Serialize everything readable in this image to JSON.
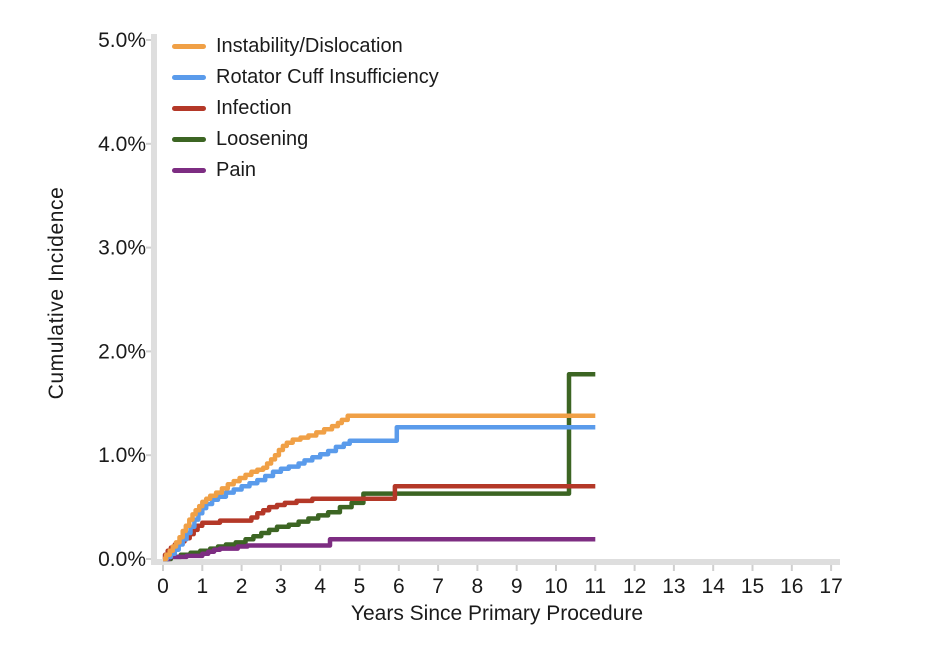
{
  "figure": {
    "background": "#FFFFFF",
    "axis_bar_color": "#DEDEDE",
    "tick_mark_color": "#CFCFCF",
    "text_color": "#1A1A1A"
  },
  "chart_data": {
    "type": "line",
    "step": true,
    "title": "",
    "xlabel": "Years Since Primary Procedure",
    "ylabel": "Cumulative Incidence",
    "value_unit": "%",
    "xlim": [
      0,
      17
    ],
    "ylim": [
      0,
      5
    ],
    "grid": false,
    "legend_position": "top-left-inside",
    "x_ticks": [
      0,
      1,
      2,
      3,
      4,
      5,
      6,
      7,
      8,
      9,
      10,
      11,
      12,
      13,
      14,
      15,
      16,
      17
    ],
    "y_ticks": [
      {
        "v": 0,
        "label": "0.0%"
      },
      {
        "v": 1,
        "label": "1.0%"
      },
      {
        "v": 2,
        "label": "2.0%"
      },
      {
        "v": 3,
        "label": "3.0%"
      },
      {
        "v": 4,
        "label": "4.0%"
      },
      {
        "v": 5,
        "label": "5.0%"
      }
    ],
    "series": [
      {
        "name": "Instability/Dislocation",
        "color": "#F0A046",
        "final_value_pct": 1.38,
        "points": [
          [
            0,
            0
          ],
          [
            0.08,
            0.04
          ],
          [
            0.17,
            0.08
          ],
          [
            0.25,
            0.12
          ],
          [
            0.33,
            0.16
          ],
          [
            0.42,
            0.21
          ],
          [
            0.5,
            0.27
          ],
          [
            0.58,
            0.32
          ],
          [
            0.67,
            0.38
          ],
          [
            0.75,
            0.43
          ],
          [
            0.83,
            0.47
          ],
          [
            0.92,
            0.51
          ],
          [
            1.0,
            0.55
          ],
          [
            1.1,
            0.58
          ],
          [
            1.2,
            0.61
          ],
          [
            1.35,
            0.64
          ],
          [
            1.5,
            0.68
          ],
          [
            1.65,
            0.72
          ],
          [
            1.8,
            0.75
          ],
          [
            1.95,
            0.78
          ],
          [
            2.1,
            0.81
          ],
          [
            2.25,
            0.84
          ],
          [
            2.4,
            0.86
          ],
          [
            2.55,
            0.88
          ],
          [
            2.65,
            0.92
          ],
          [
            2.75,
            0.96
          ],
          [
            2.85,
            1.0
          ],
          [
            2.95,
            1.05
          ],
          [
            3.05,
            1.09
          ],
          [
            3.15,
            1.12
          ],
          [
            3.3,
            1.15
          ],
          [
            3.5,
            1.17
          ],
          [
            3.7,
            1.19
          ],
          [
            3.9,
            1.22
          ],
          [
            4.1,
            1.25
          ],
          [
            4.3,
            1.28
          ],
          [
            4.45,
            1.31
          ],
          [
            4.55,
            1.34
          ],
          [
            4.7,
            1.38
          ],
          [
            11,
            1.38
          ]
        ]
      },
      {
        "name": "Rotator Cuff Insufficiency",
        "color": "#5A9BEB",
        "final_value_pct": 1.27,
        "points": [
          [
            0,
            0
          ],
          [
            0.1,
            0.02
          ],
          [
            0.2,
            0.05
          ],
          [
            0.3,
            0.09
          ],
          [
            0.4,
            0.14
          ],
          [
            0.5,
            0.19
          ],
          [
            0.6,
            0.25
          ],
          [
            0.7,
            0.31
          ],
          [
            0.8,
            0.38
          ],
          [
            0.9,
            0.44
          ],
          [
            1.0,
            0.49
          ],
          [
            1.1,
            0.53
          ],
          [
            1.25,
            0.57
          ],
          [
            1.4,
            0.6
          ],
          [
            1.6,
            0.64
          ],
          [
            1.8,
            0.67
          ],
          [
            2.0,
            0.7
          ],
          [
            2.2,
            0.73
          ],
          [
            2.4,
            0.76
          ],
          [
            2.6,
            0.8
          ],
          [
            2.8,
            0.84
          ],
          [
            3.0,
            0.87
          ],
          [
            3.2,
            0.89
          ],
          [
            3.45,
            0.92
          ],
          [
            3.6,
            0.95
          ],
          [
            3.8,
            0.98
          ],
          [
            4.0,
            1.01
          ],
          [
            4.2,
            1.04
          ],
          [
            4.4,
            1.08
          ],
          [
            4.6,
            1.11
          ],
          [
            4.75,
            1.14
          ],
          [
            5.95,
            1.27
          ],
          [
            11,
            1.27
          ]
        ]
      },
      {
        "name": "Infection",
        "color": "#B43828",
        "final_value_pct": 0.7,
        "points": [
          [
            0,
            0
          ],
          [
            0.05,
            0.04
          ],
          [
            0.12,
            0.08
          ],
          [
            0.2,
            0.11
          ],
          [
            0.3,
            0.14
          ],
          [
            0.42,
            0.17
          ],
          [
            0.55,
            0.2
          ],
          [
            0.68,
            0.24
          ],
          [
            0.78,
            0.28
          ],
          [
            0.88,
            0.32
          ],
          [
            1.0,
            0.35
          ],
          [
            1.45,
            0.37
          ],
          [
            2.25,
            0.4
          ],
          [
            2.4,
            0.44
          ],
          [
            2.55,
            0.47
          ],
          [
            2.7,
            0.5
          ],
          [
            2.9,
            0.52
          ],
          [
            3.1,
            0.54
          ],
          [
            3.4,
            0.56
          ],
          [
            3.8,
            0.58
          ],
          [
            5.9,
            0.7
          ],
          [
            11,
            0.7
          ]
        ]
      },
      {
        "name": "Loosening",
        "color": "#3C6523",
        "final_value_pct": 1.78,
        "points": [
          [
            0,
            0
          ],
          [
            0.2,
            0.02
          ],
          [
            0.45,
            0.04
          ],
          [
            0.7,
            0.06
          ],
          [
            0.95,
            0.08
          ],
          [
            1.2,
            0.1
          ],
          [
            1.4,
            0.12
          ],
          [
            1.6,
            0.14
          ],
          [
            1.85,
            0.16
          ],
          [
            2.1,
            0.19
          ],
          [
            2.3,
            0.22
          ],
          [
            2.5,
            0.25
          ],
          [
            2.7,
            0.28
          ],
          [
            2.9,
            0.31
          ],
          [
            3.2,
            0.33
          ],
          [
            3.45,
            0.36
          ],
          [
            3.7,
            0.39
          ],
          [
            3.95,
            0.42
          ],
          [
            4.2,
            0.45
          ],
          [
            4.5,
            0.5
          ],
          [
            4.8,
            0.54
          ],
          [
            5.1,
            0.63
          ],
          [
            10.33,
            1.78
          ],
          [
            11,
            1.78
          ]
        ]
      },
      {
        "name": "Pain",
        "color": "#7D2D82",
        "final_value_pct": 0.19,
        "points": [
          [
            0,
            0
          ],
          [
            0.15,
            0.02
          ],
          [
            0.6,
            0.03
          ],
          [
            1.0,
            0.05
          ],
          [
            1.15,
            0.07
          ],
          [
            1.3,
            0.09
          ],
          [
            1.45,
            0.1
          ],
          [
            1.9,
            0.12
          ],
          [
            2.15,
            0.13
          ],
          [
            4.25,
            0.19
          ],
          [
            11,
            0.19
          ]
        ]
      }
    ]
  }
}
